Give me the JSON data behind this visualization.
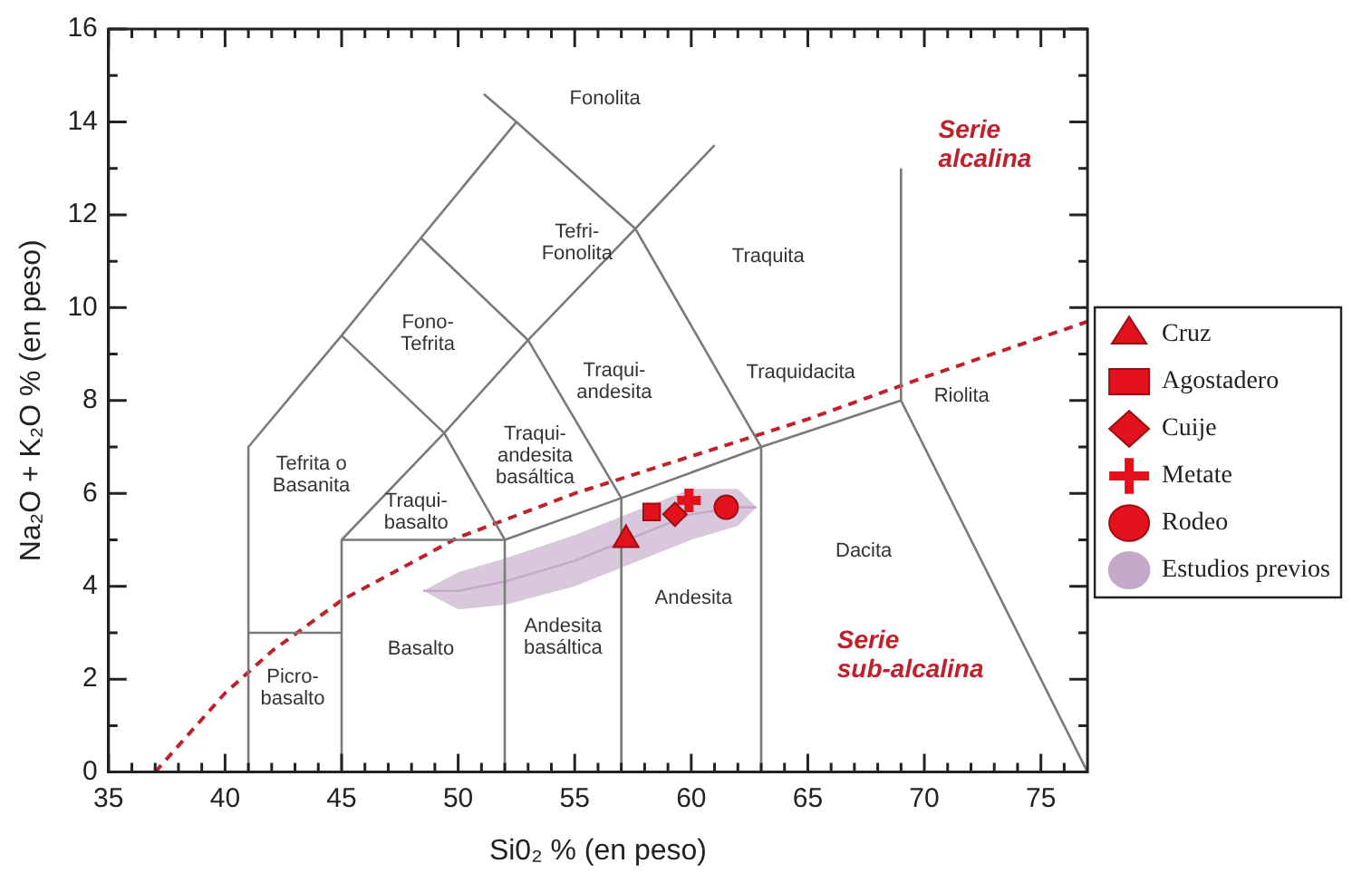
{
  "chart_data": {
    "type": "scatter",
    "xlabel": "Si0₂ % (en peso)",
    "ylabel": "Na₂O + K₂O % (en peso)",
    "xlim": [
      35,
      77
    ],
    "ylim": [
      0,
      16
    ],
    "xticks": [
      35,
      {
        "value": 36,
        "label": null
      },
      {
        "value": 37,
        "label": null
      },
      {
        "value": 38,
        "label": null
      },
      {
        "value": 39,
        "label": null
      },
      40,
      {
        "value": 41,
        "label": null
      },
      {
        "value": 42,
        "label": null
      },
      {
        "value": 43,
        "label": null
      },
      {
        "value": 44,
        "label": null
      },
      45,
      {
        "value": 46,
        "label": null
      },
      {
        "value": 47,
        "label": null
      },
      {
        "value": 48,
        "label": null
      },
      {
        "value": 49,
        "label": null
      },
      50,
      {
        "value": 51,
        "label": null
      },
      {
        "value": 52,
        "label": null
      },
      {
        "value": 53,
        "label": null
      },
      {
        "value": 54,
        "label": null
      },
      55,
      {
        "value": 56,
        "label": null
      },
      {
        "value": 57,
        "label": null
      },
      {
        "value": 58,
        "label": null
      },
      {
        "value": 59,
        "label": null
      },
      60,
      {
        "value": 61,
        "label": null
      },
      {
        "value": 62,
        "label": null
      },
      {
        "value": 63,
        "label": null
      },
      {
        "value": 64,
        "label": null
      },
      65,
      {
        "value": 66,
        "label": null
      },
      {
        "value": 67,
        "label": null
      },
      {
        "value": 68,
        "label": null
      },
      {
        "value": 69,
        "label": null
      },
      70,
      {
        "value": 71,
        "label": null
      },
      {
        "value": 72,
        "label": null
      },
      {
        "value": 73,
        "label": null
      },
      {
        "value": 74,
        "label": null
      },
      75,
      {
        "value": 76,
        "label": null
      }
    ],
    "yticks": [
      0,
      {
        "value": 1,
        "label": null
      },
      2,
      {
        "value": 3,
        "label": null
      },
      4,
      {
        "value": 5,
        "label": null
      },
      6,
      {
        "value": 7,
        "label": null
      },
      8,
      {
        "value": 9,
        "label": null
      },
      10,
      {
        "value": 11,
        "label": null
      },
      12,
      {
        "value": 13,
        "label": null
      },
      14,
      {
        "value": 15,
        "label": null
      },
      16
    ],
    "grid": false,
    "legend": "right",
    "series": [
      {
        "type": "line",
        "color": "#7a7a7a",
        "line_style": "solid",
        "x": [
          41,
          41,
          45,
          48.4,
          52.5,
          null,
          51.1,
          52.5,
          57.6,
          63,
          63,
          null,
          57.6,
          61,
          null,
          41,
          45,
          null,
          45,
          45,
          52,
          52,
          null,
          45,
          49.4,
          53,
          57.6,
          null,
          45,
          49.4,
          52,
          null,
          48.4,
          53,
          57,
          57,
          null,
          52,
          57,
          63,
          69,
          77,
          null,
          69,
          69
        ],
        "values": [
          0,
          7,
          9.4,
          11.5,
          14,
          null,
          14.6,
          14,
          11.7,
          7,
          0,
          null,
          11.7,
          13.5,
          null,
          3,
          3,
          null,
          0,
          5,
          5,
          0,
          null,
          5,
          7.3,
          9.3,
          11.7,
          null,
          9.4,
          7.3,
          5,
          null,
          11.5,
          9.3,
          5.9,
          0,
          null,
          5,
          5.9,
          7,
          8,
          0,
          null,
          8,
          13
        ]
      },
      {
        "type": "line",
        "color": "#c0202a",
        "line_style": "dashed",
        "x": [
          37,
          40,
          42,
          45,
          50,
          55,
          60,
          65,
          70,
          77
        ],
        "values": [
          0,
          1.7,
          2.6,
          3.7,
          5.05,
          6.0,
          6.8,
          7.6,
          8.5,
          9.7
        ]
      },
      {
        "name": "Cruz",
        "color": "#e3111b",
        "marker": "triangle",
        "x": [
          57.2
        ],
        "values": [
          5.0
        ]
      },
      {
        "name": "Agostadero",
        "color": "#e3111b",
        "marker": "square",
        "x": [
          58.3
        ],
        "values": [
          5.6
        ]
      },
      {
        "name": "Cuije",
        "color": "#e3111b",
        "marker": "diamond",
        "x": [
          59.3
        ],
        "values": [
          5.55
        ]
      },
      {
        "name": "Metate",
        "color": "#e3111b",
        "marker": "cross",
        "x": [
          59.9
        ],
        "values": [
          5.85
        ]
      },
      {
        "name": "Rodeo",
        "color": "#e3111b",
        "marker": "circle",
        "x": [
          61.5
        ],
        "values": [
          5.7
        ]
      },
      {
        "type": "line",
        "name": "Estudios previos",
        "color": "#c4aac9",
        "line_style": "solid",
        "x": [
          48.5,
          50,
          52,
          55,
          57,
          60,
          62,
          62.8
        ],
        "values": [
          3.9,
          3.9,
          4.1,
          4.55,
          4.95,
          5.55,
          5.7,
          5.7
        ],
        "lower": [
          3.9,
          3.5,
          3.6,
          4.0,
          4.4,
          5.0,
          5.3,
          5.7
        ],
        "upper": [
          3.9,
          4.3,
          4.6,
          5.1,
          5.5,
          6.1,
          6.1,
          5.7
        ]
      }
    ],
    "annotations": [
      "Fonolita",
      "Tefri-\nFonolita",
      "Fono-\nTefrita",
      "Traqui-\nandesita",
      "Traqui-\nandesita\nbasáltica",
      "Tefrita o\nBasanita",
      "Traqui-\nbasalto",
      "Picro-\nbasalto",
      "Basalto",
      "Andesita\nbasáltica",
      "Andesita",
      "Traquita",
      "Traquidacita",
      "Riolita",
      "Dacita",
      "Serie\nalcalina",
      "Serie\nsub-alcalina"
    ]
  }
}
